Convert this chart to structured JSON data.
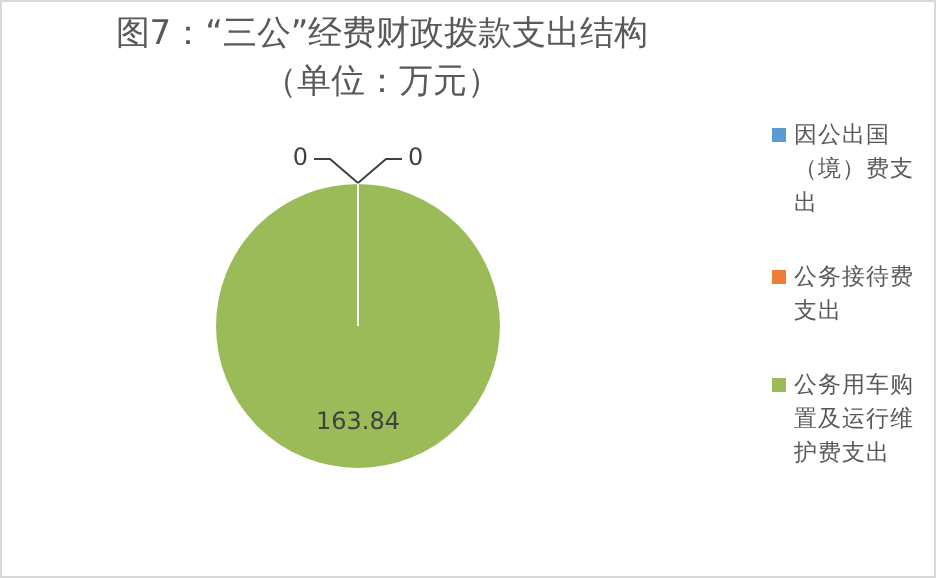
{
  "chart_data": {
    "type": "pie",
    "title": "图7：“三公”经费财政拨款支出结构（单位：万元）",
    "categories": [
      "因公出国（境）费支出",
      "公务接待费支出",
      "公务用车购置及运行维护费支出"
    ],
    "values": [
      0,
      0,
      163.84
    ],
    "colors": [
      "#5b9bd5",
      "#ed7d31",
      "#9bbb59"
    ],
    "value_labels": [
      "0",
      "0",
      "163.84"
    ],
    "legend": "right"
  }
}
